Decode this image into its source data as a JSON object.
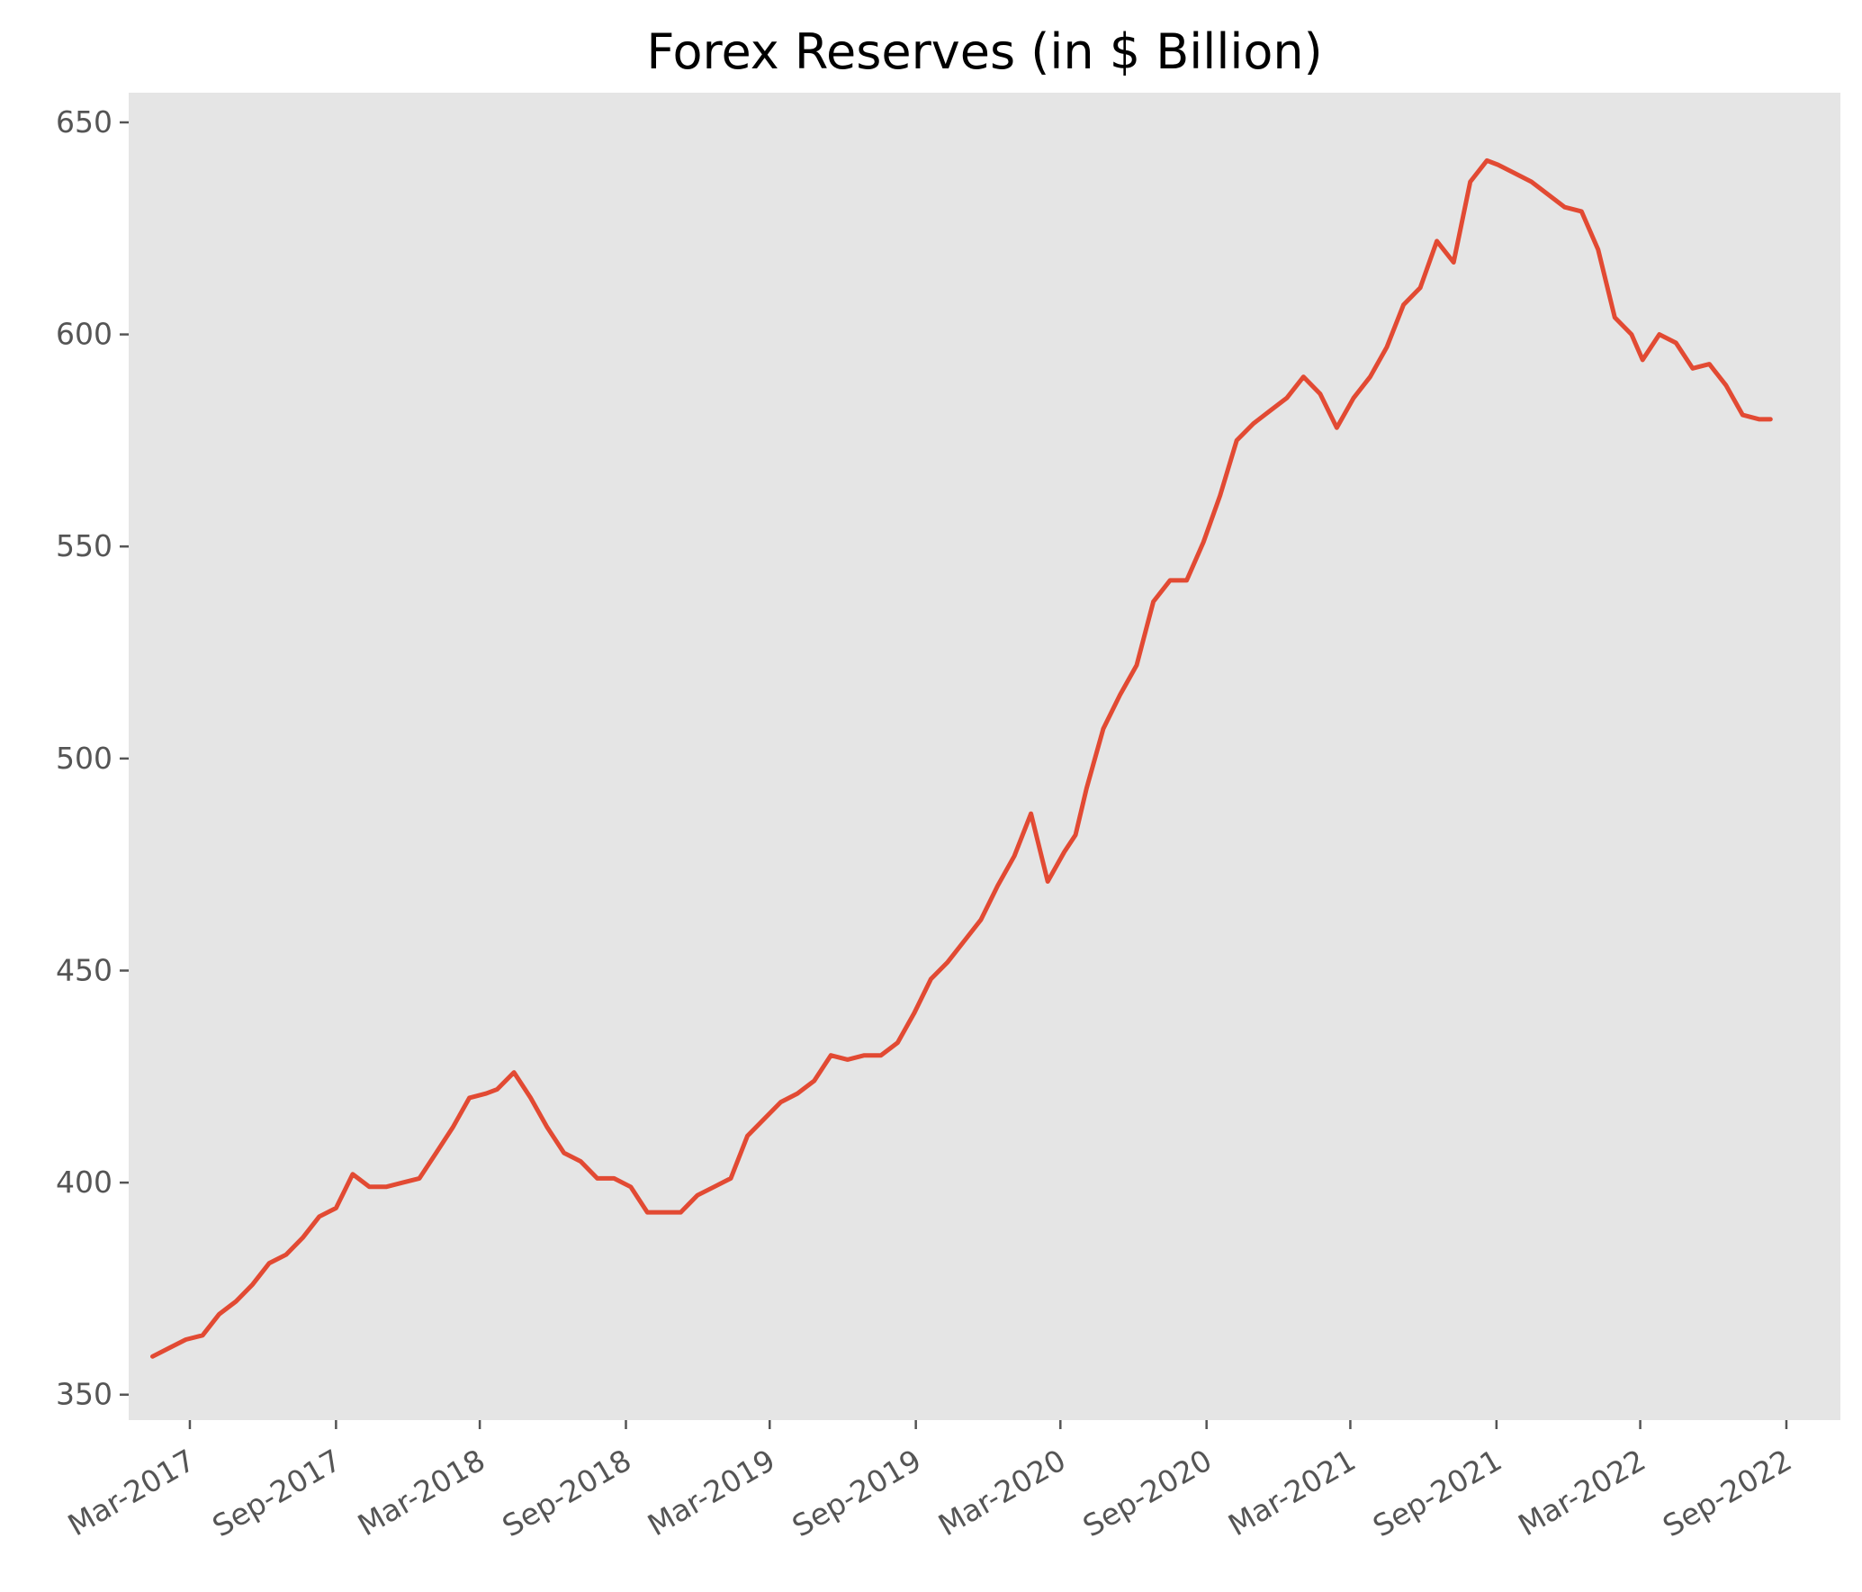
{
  "chart_data": {
    "type": "line",
    "title": "Forex Reserves (in $ Billion)",
    "xlabel": "",
    "ylabel": "",
    "x_axis_kind": "date",
    "xlim": [
      "2016-12-14",
      "2022-11-08"
    ],
    "ylim": [
      344,
      657
    ],
    "grid": false,
    "background_color": "#e5e5e5",
    "y_ticks": [
      350,
      400,
      450,
      500,
      550,
      600,
      650
    ],
    "x_ticks": [
      {
        "date": "2017-03-01",
        "label": "Mar-2017"
      },
      {
        "date": "2017-09-01",
        "label": "Sep-2017"
      },
      {
        "date": "2018-03-01",
        "label": "Mar-2018"
      },
      {
        "date": "2018-09-01",
        "label": "Sep-2018"
      },
      {
        "date": "2019-03-01",
        "label": "Mar-2019"
      },
      {
        "date": "2019-09-01",
        "label": "Sep-2019"
      },
      {
        "date": "2020-03-01",
        "label": "Mar-2020"
      },
      {
        "date": "2020-09-01",
        "label": "Sep-2020"
      },
      {
        "date": "2021-03-01",
        "label": "Mar-2021"
      },
      {
        "date": "2021-09-01",
        "label": "Sep-2021"
      },
      {
        "date": "2022-03-01",
        "label": "Mar-2022"
      },
      {
        "date": "2022-09-01",
        "label": "Sep-2022"
      }
    ],
    "series": [
      {
        "color": "#e24a33",
        "x": [
          "2017-01-13",
          "2017-02-03",
          "2017-02-24",
          "2017-03-17",
          "2017-04-07",
          "2017-04-28",
          "2017-05-19",
          "2017-06-09",
          "2017-06-30",
          "2017-07-21",
          "2017-08-11",
          "2017-09-01",
          "2017-09-22",
          "2017-10-13",
          "2017-11-03",
          "2017-11-24",
          "2017-12-15",
          "2018-01-05",
          "2018-01-26",
          "2018-02-16",
          "2018-03-09",
          "2018-03-23",
          "2018-04-13",
          "2018-05-04",
          "2018-05-25",
          "2018-06-15",
          "2018-07-06",
          "2018-07-27",
          "2018-08-17",
          "2018-09-07",
          "2018-09-28",
          "2018-10-19",
          "2018-11-09",
          "2018-11-30",
          "2018-12-21",
          "2019-01-11",
          "2019-02-01",
          "2019-02-22",
          "2019-03-15",
          "2019-04-05",
          "2019-04-26",
          "2019-05-17",
          "2019-06-07",
          "2019-06-28",
          "2019-07-19",
          "2019-08-09",
          "2019-08-30",
          "2019-09-20",
          "2019-10-11",
          "2019-11-01",
          "2019-11-22",
          "2019-12-13",
          "2020-01-03",
          "2020-01-24",
          "2020-02-14",
          "2020-03-06",
          "2020-03-20",
          "2020-04-03",
          "2020-04-24",
          "2020-05-15",
          "2020-06-05",
          "2020-06-26",
          "2020-07-17",
          "2020-08-07",
          "2020-08-28",
          "2020-09-18",
          "2020-10-09",
          "2020-10-30",
          "2020-11-20",
          "2020-12-11",
          "2021-01-01",
          "2021-01-22",
          "2021-02-12",
          "2021-03-05",
          "2021-03-26",
          "2021-04-16",
          "2021-05-07",
          "2021-05-28",
          "2021-06-18",
          "2021-07-09",
          "2021-07-30",
          "2021-08-20",
          "2021-09-03",
          "2021-09-24",
          "2021-10-15",
          "2021-11-05",
          "2021-11-26",
          "2021-12-17",
          "2022-01-07",
          "2022-01-28",
          "2022-02-18",
          "2022-03-04",
          "2022-03-25",
          "2022-04-15",
          "2022-05-06",
          "2022-05-27",
          "2022-06-17",
          "2022-07-08",
          "2022-07-29",
          "2022-08-12"
        ],
        "y": [
          359,
          361,
          363,
          364,
          369,
          372,
          376,
          381,
          383,
          387,
          392,
          394,
          402,
          399,
          399,
          400,
          401,
          407,
          413,
          420,
          421,
          422,
          426,
          420,
          413,
          407,
          405,
          401,
          401,
          399,
          393,
          393,
          393,
          397,
          399,
          401,
          411,
          415,
          419,
          421,
          424,
          430,
          429,
          430,
          430,
          433,
          440,
          448,
          452,
          457,
          462,
          470,
          477,
          487,
          471,
          478,
          482,
          493,
          507,
          515,
          522,
          537,
          542,
          542,
          551,
          562,
          575,
          579,
          582,
          585,
          590,
          586,
          578,
          585,
          590,
          597,
          607,
          611,
          622,
          617,
          636,
          641,
          640,
          638,
          636,
          633,
          630,
          629,
          620,
          604,
          600,
          594,
          600,
          598,
          592,
          593,
          588,
          581,
          580,
          580
        ],
        "y_fix": "unused"
      }
    ]
  }
}
